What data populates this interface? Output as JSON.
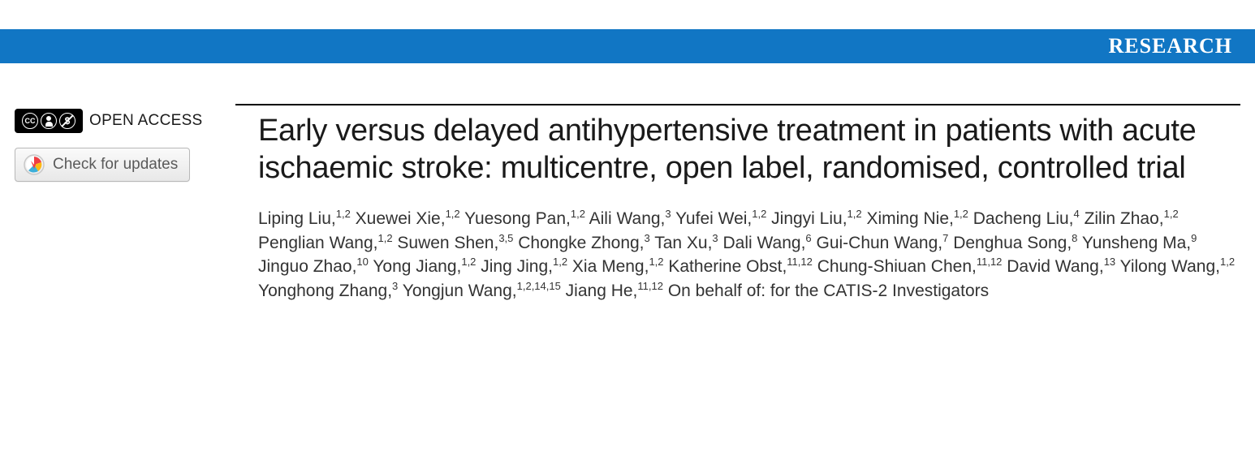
{
  "banner": {
    "label": "RESEARCH",
    "background_color": "#1176c4",
    "text_color": "#ffffff"
  },
  "sidebar": {
    "open_access_label": "OPEN ACCESS",
    "updates_label": "Check for updates"
  },
  "article": {
    "title": "Early versus delayed antihypertensive treatment in patients with acute ischaemic stroke: multicentre, open label, randomised, controlled trial",
    "authors": [
      {
        "name": "Liping Liu",
        "affil": "1,2"
      },
      {
        "name": "Xuewei Xie",
        "affil": "1,2"
      },
      {
        "name": "Yuesong Pan",
        "affil": "1,2"
      },
      {
        "name": "Aili Wang",
        "affil": "3"
      },
      {
        "name": "Yufei Wei",
        "affil": "1,2"
      },
      {
        "name": "Jingyi Liu",
        "affil": "1,2"
      },
      {
        "name": "Ximing Nie",
        "affil": "1,2"
      },
      {
        "name": "Dacheng Liu",
        "affil": "4"
      },
      {
        "name": "Zilin Zhao",
        "affil": "1,2"
      },
      {
        "name": "Penglian Wang",
        "affil": "1,2"
      },
      {
        "name": "Suwen Shen",
        "affil": "3,5"
      },
      {
        "name": "Chongke Zhong",
        "affil": "3"
      },
      {
        "name": "Tan Xu",
        "affil": "3"
      },
      {
        "name": "Dali Wang",
        "affil": "6"
      },
      {
        "name": "Gui-Chun Wang",
        "affil": "7"
      },
      {
        "name": "Denghua Song",
        "affil": "8"
      },
      {
        "name": "Yunsheng Ma",
        "affil": "9"
      },
      {
        "name": "Jinguo Zhao",
        "affil": "10"
      },
      {
        "name": "Yong Jiang",
        "affil": "1,2"
      },
      {
        "name": "Jing Jing",
        "affil": "1,2"
      },
      {
        "name": "Xia Meng",
        "affil": "1,2"
      },
      {
        "name": "Katherine Obst",
        "affil": "11,12"
      },
      {
        "name": "Chung-Shiuan Chen",
        "affil": "11,12"
      },
      {
        "name": "David Wang",
        "affil": "13"
      },
      {
        "name": "Yilong Wang",
        "affil": "1,2"
      },
      {
        "name": "Yonghong Zhang",
        "affil": "3"
      },
      {
        "name": "Yongjun Wang",
        "affil": "1,2,14,15"
      },
      {
        "name": "Jiang He",
        "affil": "11,12"
      }
    ],
    "author_suffix": "On behalf of: for the CATIS-2 Investigators"
  },
  "colors": {
    "banner_bg": "#1176c4",
    "text": "#1a1a1a",
    "author_text": "#333333",
    "rule": "#000000"
  }
}
